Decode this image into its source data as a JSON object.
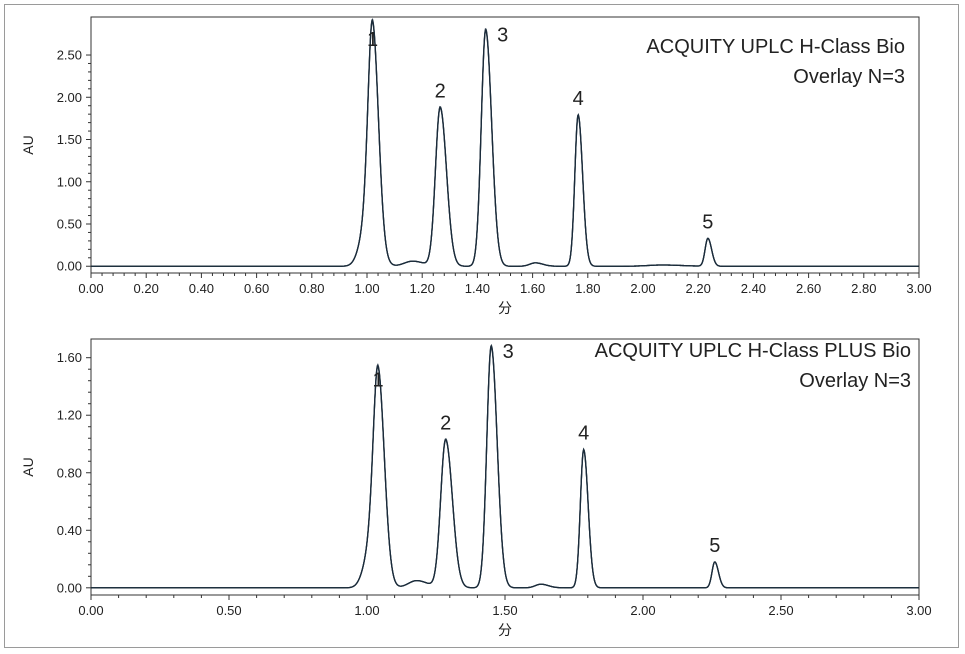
{
  "chart_data": [
    {
      "type": "line",
      "title_lines": [
        "ACQUITY UPLC H-Class Bio",
        "Overlay N=3"
      ],
      "xlabel": "分",
      "ylabel": "AU",
      "xlim": [
        0,
        3.0
      ],
      "ylim": [
        -0.08,
        2.95
      ],
      "x_ticks": [
        "0.00",
        "0.20",
        "0.40",
        "0.60",
        "0.80",
        "1.00",
        "1.20",
        "1.40",
        "1.60",
        "1.80",
        "2.00",
        "2.20",
        "2.40",
        "2.60",
        "2.80",
        "3.00"
      ],
      "y_ticks": [
        "0.00",
        "0.50",
        "1.00",
        "1.50",
        "2.00",
        "2.50"
      ],
      "grid": false,
      "color": "#1a2a3a",
      "peaks": [
        {
          "label": "1",
          "rt": 1.02,
          "height": 2.49,
          "sigma": 0.016
        },
        {
          "label": "2",
          "rt": 1.265,
          "height": 1.88,
          "sigma": 0.017
        },
        {
          "label": "3",
          "rt": 1.43,
          "height": 2.8,
          "sigma": 0.016
        },
        {
          "label": "4",
          "rt": 1.765,
          "height": 1.79,
          "sigma": 0.012
        },
        {
          "label": "5",
          "rt": 2.235,
          "height": 0.33,
          "sigma": 0.01
        }
      ],
      "minor_peaks": [
        {
          "rt": 1.0,
          "height": 0.5,
          "sigma": 0.025
        },
        {
          "rt": 1.165,
          "height": 0.06,
          "sigma": 0.03
        },
        {
          "rt": 1.61,
          "height": 0.04,
          "sigma": 0.02
        },
        {
          "rt": 2.07,
          "height": 0.015,
          "sigma": 0.05
        }
      ]
    },
    {
      "type": "line",
      "title_lines": [
        "ACQUITY UPLC H-Class PLUS Bio",
        "Overlay N=3"
      ],
      "xlabel": "分",
      "ylabel": "AU",
      "xlim": [
        0,
        3.0
      ],
      "ylim": [
        -0.05,
        1.73
      ],
      "x_ticks": [
        "0.00",
        "0.50",
        "1.00",
        "1.50",
        "2.00",
        "2.50",
        "3.00"
      ],
      "y_ticks": [
        "0.00",
        "0.40",
        "0.80",
        "1.20",
        "1.60"
      ],
      "grid": false,
      "color": "#1a2a3a",
      "peaks": [
        {
          "label": "1",
          "rt": 1.04,
          "height": 1.33,
          "sigma": 0.017
        },
        {
          "label": "2",
          "rt": 1.285,
          "height": 1.03,
          "sigma": 0.018
        },
        {
          "label": "3",
          "rt": 1.45,
          "height": 1.68,
          "sigma": 0.016
        },
        {
          "label": "4",
          "rt": 1.785,
          "height": 0.96,
          "sigma": 0.012
        },
        {
          "label": "5",
          "rt": 2.26,
          "height": 0.18,
          "sigma": 0.01
        }
      ],
      "minor_peaks": [
        {
          "rt": 1.015,
          "height": 0.28,
          "sigma": 0.025
        },
        {
          "rt": 1.18,
          "height": 0.05,
          "sigma": 0.03
        },
        {
          "rt": 1.63,
          "height": 0.025,
          "sigma": 0.02
        }
      ]
    }
  ]
}
